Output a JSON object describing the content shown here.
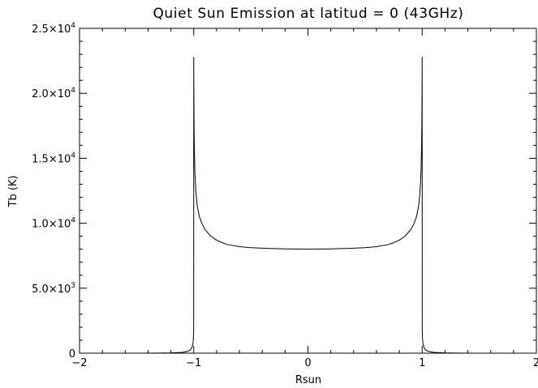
{
  "chart_data": {
    "type": "line",
    "title": "Quiet Sun Emission at latitud = 0 (43GHz)",
    "xlabel": "Rsun",
    "ylabel": "Tb (K)",
    "xlim": [
      -2,
      2
    ],
    "ylim": [
      0,
      25000
    ],
    "grid": false,
    "x_ticks": [
      {
        "value": -2,
        "label": "−2"
      },
      {
        "value": -1,
        "label": "−1"
      },
      {
        "value": 0,
        "label": "0"
      },
      {
        "value": 1,
        "label": "1"
      },
      {
        "value": 2,
        "label": "2"
      }
    ],
    "y_ticks": [
      {
        "value": 0,
        "mantissa": "0",
        "exponent": ""
      },
      {
        "value": 5000,
        "mantissa": "5.0×10",
        "exponent": "3"
      },
      {
        "value": 10000,
        "mantissa": "1.0×10",
        "exponent": "4"
      },
      {
        "value": 15000,
        "mantissa": "1.5×10",
        "exponent": "4"
      },
      {
        "value": 20000,
        "mantissa": "2.0×10",
        "exponent": "4"
      },
      {
        "value": 25000,
        "mantissa": "2.5×10",
        "exponent": "4"
      }
    ],
    "series": [
      {
        "color": "#000000",
        "x": [
          -1.45,
          -1.3,
          -1.2,
          -1.1,
          -1.05,
          -1.03,
          -1.015,
          -1.008,
          -1.004,
          -1.002,
          -1.0005,
          -1.0,
          -0.999,
          -0.997,
          -0.995,
          -0.99,
          -0.985,
          -0.98,
          -0.97,
          -0.96,
          -0.95,
          -0.93,
          -0.9,
          -0.85,
          -0.8,
          -0.75,
          -0.7,
          -0.6,
          -0.5,
          -0.4,
          -0.3,
          -0.2,
          -0.1,
          0.0,
          0.1,
          0.2,
          0.3,
          0.4,
          0.5,
          0.6,
          0.7,
          0.75,
          0.8,
          0.85,
          0.9,
          0.93,
          0.95,
          0.96,
          0.97,
          0.98,
          0.985,
          0.99,
          0.995,
          0.997,
          0.999,
          1.0,
          1.0005,
          1.002,
          1.004,
          1.008,
          1.015,
          1.03,
          1.05,
          1.1,
          1.2,
          1.3,
          1.45
        ],
        "y": [
          0,
          5,
          20,
          60,
          150,
          250,
          450,
          700,
          1000,
          1400,
          1800,
          22800,
          20500,
          17500,
          16000,
          14000,
          13000,
          12300,
          11400,
          10900,
          10500,
          10000,
          9500,
          9000,
          8700,
          8500,
          8350,
          8200,
          8120,
          8080,
          8050,
          8030,
          8010,
          8000,
          8010,
          8030,
          8050,
          8080,
          8120,
          8200,
          8350,
          8500,
          8700,
          9000,
          9500,
          10000,
          10500,
          10900,
          11400,
          12300,
          13000,
          14000,
          16000,
          17500,
          20500,
          22800,
          1800,
          1400,
          1000,
          700,
          450,
          250,
          150,
          60,
          20,
          5,
          0
        ]
      }
    ]
  }
}
